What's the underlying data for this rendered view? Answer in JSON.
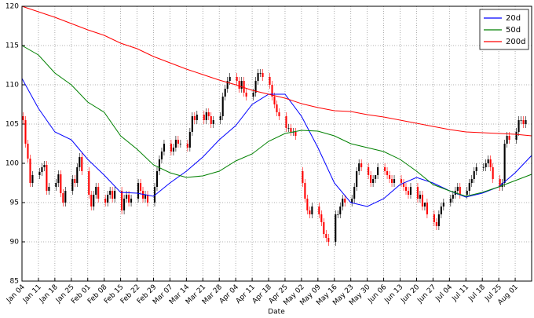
{
  "chart_data": {
    "type": "candlestick",
    "xlabel": "Date",
    "x": [
      0,
      1,
      2,
      3,
      4,
      7,
      8,
      9,
      10,
      11,
      14,
      15,
      16,
      17,
      18,
      21,
      22,
      23,
      24,
      25,
      28,
      29,
      30,
      31,
      32,
      35,
      36,
      37,
      38,
      39,
      42,
      43,
      44,
      45,
      46,
      49,
      50,
      51,
      52,
      53,
      56,
      57,
      58,
      59,
      60,
      63,
      64,
      65,
      66,
      67,
      70,
      71,
      72,
      73,
      74,
      77,
      78,
      79,
      80,
      81,
      84,
      85,
      86,
      87,
      88,
      91,
      92,
      93,
      94,
      95,
      98,
      99,
      100,
      101,
      102,
      105,
      106,
      107,
      108,
      109,
      112,
      113,
      114,
      115,
      116,
      119,
      120,
      121,
      122,
      123,
      126,
      127,
      128,
      129,
      130,
      133,
      134,
      135,
      136,
      137,
      140,
      141,
      142,
      143,
      144,
      147,
      148,
      149,
      150,
      151,
      154,
      155,
      156,
      157,
      158,
      161,
      162,
      163,
      164,
      165,
      168,
      169,
      170,
      171,
      172,
      175,
      176,
      177,
      178,
      179,
      182,
      183,
      184,
      185,
      186,
      189,
      190,
      191,
      192,
      193,
      196,
      197,
      198,
      199,
      200,
      203,
      204,
      205,
      206,
      207,
      210,
      211,
      212,
      213,
      214
    ],
    "open": [
      106,
      105.5,
      102.5,
      100.6,
      97.5,
      98.5,
      98.9,
      99.5,
      99.8,
      96.5,
      97,
      97.5,
      98.6,
      96.2,
      95,
      96.5,
      98,
      97.5,
      99.5,
      100.8,
      99,
      96,
      94.5,
      96,
      97,
      95.5,
      95,
      96,
      96.5,
      95.5,
      96.5,
      94,
      95.5,
      96,
      95,
      95.5,
      97.5,
      96.5,
      95.5,
      96,
      95,
      97,
      99,
      100.5,
      101.5,
      102.5,
      101.5,
      102,
      103,
      102.5,
      102.5,
      102,
      104,
      106,
      105.5,
      106.2,
      105.5,
      106.5,
      106,
      105,
      105.5,
      106,
      108.5,
      109.5,
      110.5,
      111,
      110.5,
      109.5,
      110.5,
      109,
      108.5,
      109,
      110.5,
      111.5,
      111.5,
      111,
      110,
      108.5,
      107.5,
      106.5,
      106,
      104.5,
      104.5,
      104,
      104,
      99,
      97.5,
      95.5,
      94,
      93.5,
      94.5,
      93.5,
      92.5,
      91,
      90.5,
      90,
      93.5,
      93.5,
      94.5,
      95.5,
      95,
      95.5,
      97,
      99,
      100,
      99.5,
      98.5,
      97.5,
      98,
      98.5,
      99.5,
      99,
      98.5,
      98,
      97.5,
      98,
      97.5,
      97,
      96.5,
      96,
      97,
      95.5,
      96,
      94.5,
      95,
      93.5,
      92.5,
      92,
      93.5,
      94.5,
      95,
      95.5,
      96,
      96.5,
      97,
      96,
      96.5,
      97.5,
      98,
      99,
      99.5,
      99.5,
      100,
      100.5,
      99.5,
      98,
      97,
      97.5,
      102.5,
      103.5,
      103,
      104,
      105.5,
      105.5,
      105
    ],
    "high": [
      106.5,
      106,
      103,
      101.1,
      99,
      99.4,
      100,
      100.3,
      100.3,
      97.5,
      98,
      99.1,
      99.1,
      96.7,
      97,
      98.5,
      98.5,
      100,
      101.3,
      101.3,
      99.5,
      96.5,
      96.5,
      97.5,
      97.5,
      96,
      96.5,
      97,
      97,
      97,
      97,
      96,
      96.5,
      96.5,
      96,
      98,
      98,
      97,
      96.5,
      96.5,
      97.5,
      99.5,
      101,
      102,
      103,
      103,
      102.5,
      103.5,
      103.5,
      103,
      103,
      104.5,
      106.5,
      106.5,
      106.7,
      106.7,
      107,
      107,
      106.5,
      106,
      106.5,
      109,
      110,
      111,
      111.5,
      111.5,
      111,
      111,
      111,
      109.5,
      109.5,
      111,
      112,
      112,
      112,
      111.5,
      110.5,
      109,
      108,
      107,
      106.5,
      105,
      105,
      104.5,
      104.5,
      99.5,
      98,
      96,
      94.5,
      95,
      95,
      94,
      93,
      91.5,
      91,
      94,
      94,
      95,
      96,
      96,
      96,
      97.5,
      99.5,
      100.5,
      100.5,
      100,
      99,
      98.5,
      98.5,
      100,
      100,
      99.5,
      99,
      98.5,
      98.5,
      98.5,
      98,
      97.5,
      97,
      97.5,
      97.5,
      96.5,
      96.5,
      95,
      95.5,
      94,
      93,
      94,
      95,
      95.5,
      96,
      96.5,
      97,
      97.5,
      97.5,
      97,
      98,
      98.5,
      99.5,
      100,
      100,
      100.5,
      101,
      101,
      100,
      98.5,
      98,
      103,
      104,
      104,
      104.5,
      106,
      106,
      106,
      106
    ],
    "low": [
      105,
      102,
      100.1,
      97,
      97,
      98,
      98.4,
      99,
      96,
      96,
      96.5,
      97,
      95.7,
      94.5,
      94.5,
      96,
      97,
      97,
      99,
      98.5,
      95.5,
      94,
      94,
      95.5,
      95,
      94.5,
      94.5,
      95.5,
      95,
      95,
      93.5,
      93.5,
      95,
      94.5,
      94.5,
      95,
      96,
      95,
      95,
      94.5,
      94.5,
      96.5,
      98.5,
      100,
      101,
      101,
      101,
      101.5,
      102,
      102,
      101.5,
      101.5,
      103.5,
      105,
      105,
      105,
      105,
      105.5,
      104.5,
      104.5,
      105,
      105.5,
      108,
      109,
      110,
      110,
      109,
      109,
      108.5,
      108,
      108,
      108.5,
      110,
      111,
      110.5,
      109.5,
      108,
      107,
      106,
      105.5,
      104,
      104,
      103.5,
      103.5,
      103,
      97,
      95,
      93.5,
      93,
      93,
      93,
      92,
      90.5,
      90,
      89.5,
      89.5,
      93,
      93,
      94,
      94.5,
      94.5,
      95,
      96.5,
      98.5,
      99,
      98,
      97,
      97,
      97.5,
      98,
      98.5,
      98,
      97.5,
      97,
      97,
      97,
      96.5,
      96,
      95.5,
      95.5,
      95,
      95,
      94,
      94,
      93,
      92,
      91.5,
      91.5,
      93,
      94,
      94.5,
      95,
      95.5,
      96,
      95.5,
      95.5,
      96,
      97,
      97.5,
      98.5,
      99,
      99,
      99.5,
      99,
      97.5,
      96.5,
      96.5,
      97,
      102,
      102.5,
      102.5,
      103.5,
      105,
      104.5,
      104.5
    ],
    "close": [
      105.5,
      102.5,
      100.6,
      97.5,
      98.5,
      98.9,
      99.5,
      99.8,
      96.5,
      97,
      97.5,
      98.6,
      96.2,
      95,
      96.5,
      98,
      97.5,
      99.5,
      100.8,
      99,
      96,
      94.5,
      96,
      97,
      95.5,
      95,
      96,
      96.5,
      95.5,
      96.5,
      94,
      95.5,
      96,
      95,
      95.5,
      97.5,
      96.5,
      95.5,
      96,
      95,
      97,
      99,
      100.5,
      101.5,
      102.5,
      101.5,
      102,
      103,
      102.5,
      102.5,
      102,
      104,
      106,
      105.5,
      106.2,
      105.5,
      106.5,
      106,
      105,
      105.5,
      106,
      108.5,
      109.5,
      110.5,
      111,
      110.5,
      109.5,
      110.5,
      109,
      108.5,
      109,
      110.5,
      111.5,
      111.5,
      111,
      110,
      108.5,
      107.5,
      106.5,
      106,
      104.5,
      104.5,
      104,
      104,
      103.5,
      97.5,
      95.5,
      94,
      93.5,
      94.5,
      93.5,
      92.5,
      91,
      90.5,
      90,
      93.5,
      93.5,
      94.5,
      95.5,
      95,
      95.5,
      97,
      99,
      100,
      99.5,
      98.5,
      97.5,
      98,
      98.5,
      99.5,
      99,
      98.5,
      98,
      97.5,
      98,
      97.5,
      97,
      96.5,
      96,
      97,
      95.5,
      96,
      94.5,
      95,
      93.5,
      92.5,
      92,
      93.5,
      94.5,
      95,
      95.5,
      96,
      96.5,
      97,
      96,
      96.5,
      97.5,
      98,
      99,
      99.5,
      99.5,
      100,
      100.5,
      99.5,
      98,
      97,
      97.5,
      102.5,
      103.5,
      103,
      104,
      105.5,
      105.5,
      105,
      105.5
    ],
    "up_color": "#000000",
    "down_color": "#ff0000",
    "series": [
      {
        "name": "20d",
        "color": "#0000ff",
        "x": [
          0,
          7,
          14,
          21,
          28,
          35,
          42,
          49,
          56,
          63,
          70,
          77,
          84,
          91,
          98,
          105,
          112,
          119,
          126,
          133,
          140,
          147,
          154,
          161,
          168,
          175,
          182,
          189,
          196,
          203,
          210,
          217
        ],
        "values": [
          110.8,
          107,
          104,
          103,
          100.5,
          98.5,
          96.3,
          96.2,
          95.8,
          97.5,
          99,
          100.8,
          103,
          104.8,
          107.5,
          108.8,
          108.8,
          106,
          102,
          97.5,
          95,
          94.5,
          95.5,
          97.3,
          98.2,
          97.5,
          96.5,
          95.7,
          96.2,
          97,
          98.8,
          101
        ]
      },
      {
        "name": "50d",
        "color": "#008000",
        "x": [
          0,
          7,
          14,
          21,
          28,
          35,
          42,
          49,
          56,
          63,
          70,
          77,
          84,
          91,
          98,
          105,
          112,
          119,
          126,
          133,
          140,
          147,
          154,
          161,
          168,
          175,
          182,
          189,
          196,
          203,
          210,
          217
        ],
        "values": [
          115,
          113.8,
          111.5,
          110,
          107.8,
          106.5,
          103.5,
          101.8,
          99.8,
          98.8,
          98.2,
          98.4,
          99,
          100.3,
          101.2,
          102.8,
          103.8,
          104.2,
          104.1,
          103.5,
          102.5,
          102,
          101.5,
          100.5,
          99,
          97.3,
          96.5,
          95.8,
          96.3,
          97,
          97.8,
          98.6
        ]
      },
      {
        "name": "200d",
        "color": "#ff0000",
        "x": [
          0,
          7,
          14,
          21,
          28,
          35,
          42,
          49,
          56,
          63,
          70,
          77,
          84,
          91,
          98,
          105,
          112,
          119,
          126,
          133,
          140,
          147,
          154,
          161,
          168,
          175,
          182,
          189,
          196,
          203,
          210,
          217
        ],
        "values": [
          120,
          119.3,
          118.6,
          117.8,
          117,
          116.3,
          115.3,
          114.6,
          113.6,
          112.8,
          112,
          111.3,
          110.6,
          110,
          109.3,
          108.8,
          108.3,
          107.6,
          107.1,
          106.7,
          106.6,
          106.2,
          105.9,
          105.5,
          105.1,
          104.7,
          104.3,
          104,
          103.9,
          103.8,
          103.7,
          103.5
        ]
      }
    ],
    "xlim": [
      0,
      217
    ],
    "xticks": [
      {
        "value": 0,
        "label": "Jan 04"
      },
      {
        "value": 7,
        "label": "Jan 11"
      },
      {
        "value": 14,
        "label": "Jan 18"
      },
      {
        "value": 21,
        "label": "Jan 25"
      },
      {
        "value": 28,
        "label": "Feb 01"
      },
      {
        "value": 35,
        "label": "Feb 08"
      },
      {
        "value": 42,
        "label": "Feb 15"
      },
      {
        "value": 49,
        "label": "Feb 22"
      },
      {
        "value": 56,
        "label": "Feb 29"
      },
      {
        "value": 63,
        "label": "Mar 07"
      },
      {
        "value": 70,
        "label": "Mar 14"
      },
      {
        "value": 77,
        "label": "Mar 21"
      },
      {
        "value": 84,
        "label": "Mar 28"
      },
      {
        "value": 91,
        "label": "Apr 04"
      },
      {
        "value": 98,
        "label": "Apr 11"
      },
      {
        "value": 105,
        "label": "Apr 18"
      },
      {
        "value": 112,
        "label": "Apr 25"
      },
      {
        "value": 119,
        "label": "May 02"
      },
      {
        "value": 126,
        "label": "May 09"
      },
      {
        "value": 133,
        "label": "May 16"
      },
      {
        "value": 140,
        "label": "May 23"
      },
      {
        "value": 147,
        "label": "May 30"
      },
      {
        "value": 154,
        "label": "Jun 06"
      },
      {
        "value": 161,
        "label": "Jun 13"
      },
      {
        "value": 168,
        "label": "Jun 20"
      },
      {
        "value": 175,
        "label": "Jun 27"
      },
      {
        "value": 182,
        "label": "Jul 04"
      },
      {
        "value": 189,
        "label": "Jul 11"
      },
      {
        "value": 196,
        "label": "Jul 18"
      },
      {
        "value": 203,
        "label": "Jul 25"
      },
      {
        "value": 210,
        "label": "Aug 01"
      }
    ],
    "ylim": [
      85,
      120
    ],
    "yticks": [
      85,
      90,
      95,
      100,
      105,
      110,
      115,
      120
    ],
    "grid": true,
    "legend": "upper right"
  }
}
